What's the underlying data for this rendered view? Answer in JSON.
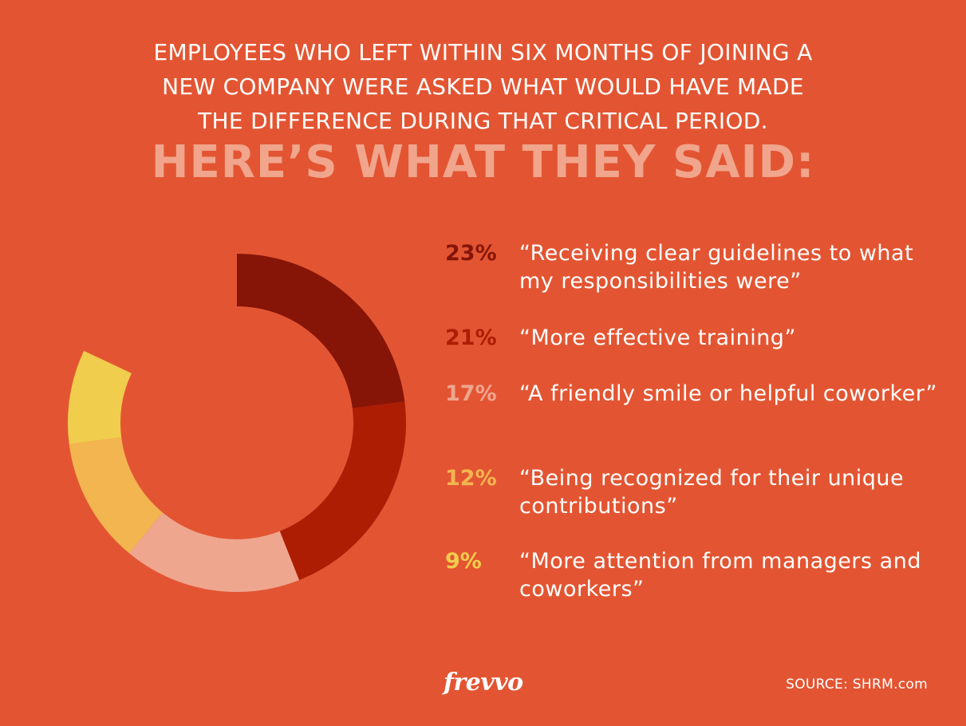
{
  "header": {
    "intro_lines": [
      "EMPLOYEES WHO LEFT WITHIN SIX MONTHS OF JOINING A",
      "NEW COMPANY WERE ASKED WHAT WOULD HAVE MADE",
      "THE DIFFERENCE DURING THAT CRITICAL PERIOD."
    ],
    "headline": "HERE’S WHAT THEY SAID:"
  },
  "chart_data": {
    "type": "pie",
    "style": "donut",
    "categories": [
      "Receiving clear guidelines to what my responsibilities were",
      "More effective training",
      "A friendly smile or helpful coworker",
      "Being recognized for their unique contributions",
      "More attention from managers and coworkers"
    ],
    "values": [
      23,
      21,
      17,
      12,
      9
    ],
    "unit": "%",
    "colors": [
      "#861508",
      "#ad1d04",
      "#eea68f",
      "#f2b550",
      "#f0cd4c"
    ]
  },
  "legend": [
    {
      "percent": "23%",
      "quote": "“Receiving clear guidelines to what my responsibilities were”",
      "color": "#861508"
    },
    {
      "percent": "21%",
      "quote": "“More effective training”",
      "color": "#ad1d04"
    },
    {
      "percent": "17%",
      "quote": "“A friendly smile or helpful coworker”",
      "color": "#eea68f"
    },
    {
      "percent": "12%",
      "quote": "“Being recognized for their unique contributions”",
      "color": "#f2b550"
    },
    {
      "percent": "9%",
      "quote": "“More attention from managers and coworkers”",
      "color": "#f0cd4c"
    }
  ],
  "footer": {
    "brand": "frevvo",
    "source": "SOURCE: SHRM.com"
  }
}
